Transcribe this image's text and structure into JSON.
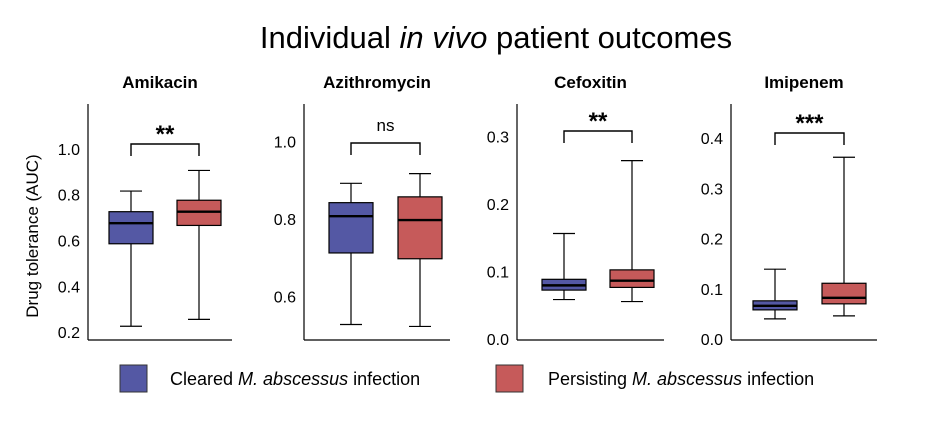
{
  "title": {
    "pre": "Individual ",
    "italic": "in vivo",
    "post": " patient outcomes"
  },
  "chart_data": {
    "type": "boxplot",
    "ylabel": "Drug tolerance (AUC)",
    "colors": {
      "cleared": "#5458a4",
      "persisting": "#c65a5a"
    },
    "legend": [
      {
        "key": "cleared",
        "pre": "Cleared ",
        "italic": "M. abscessus",
        "post": " infection"
      },
      {
        "key": "persisting",
        "pre": "Persisting ",
        "italic": "M. abscessus",
        "post": " infection"
      }
    ],
    "panels": [
      {
        "title": "Amikacin",
        "ylim": [
          0.17,
          1.2
        ],
        "ticks": [
          0.2,
          0.4,
          0.6,
          0.8,
          1.0
        ],
        "tick_labels": [
          "0.2",
          "0.4",
          "0.6",
          "0.8",
          "1.0"
        ],
        "significance": "**",
        "boxes": [
          {
            "group": "cleared",
            "min": 0.23,
            "q1": 0.59,
            "median": 0.68,
            "q3": 0.73,
            "max": 0.82
          },
          {
            "group": "persisting",
            "min": 0.26,
            "q1": 0.67,
            "median": 0.73,
            "q3": 0.78,
            "max": 0.91
          }
        ]
      },
      {
        "title": "Azithromycin",
        "ylim": [
          0.49,
          1.1
        ],
        "ticks": [
          0.6,
          0.8,
          1.0
        ],
        "tick_labels": [
          "0.6",
          "0.8",
          "1.0"
        ],
        "significance": "ns",
        "boxes": [
          {
            "group": "cleared",
            "min": 0.53,
            "q1": 0.715,
            "median": 0.81,
            "q3": 0.845,
            "max": 0.895
          },
          {
            "group": "persisting",
            "min": 0.525,
            "q1": 0.7,
            "median": 0.8,
            "q3": 0.86,
            "max": 0.92
          }
        ]
      },
      {
        "title": "Cefoxitin",
        "ylim": [
          0.0,
          0.35
        ],
        "ticks": [
          0.0,
          0.1,
          0.2,
          0.3
        ],
        "tick_labels": [
          "0.0",
          "0.1",
          "0.2",
          "0.3"
        ],
        "significance": "**",
        "boxes": [
          {
            "group": "cleared",
            "min": 0.06,
            "q1": 0.074,
            "median": 0.081,
            "q3": 0.09,
            "max": 0.158
          },
          {
            "group": "persisting",
            "min": 0.057,
            "q1": 0.078,
            "median": 0.088,
            "q3": 0.104,
            "max": 0.266
          }
        ]
      },
      {
        "title": "Imipenem",
        "ylim": [
          0.0,
          0.47
        ],
        "ticks": [
          0.0,
          0.1,
          0.2,
          0.3,
          0.4
        ],
        "tick_labels": [
          "0.0",
          "0.1",
          "0.2",
          "0.3",
          "0.4"
        ],
        "significance": "***",
        "boxes": [
          {
            "group": "cleared",
            "min": 0.042,
            "q1": 0.06,
            "median": 0.068,
            "q3": 0.078,
            "max": 0.141
          },
          {
            "group": "persisting",
            "min": 0.048,
            "q1": 0.072,
            "median": 0.084,
            "q3": 0.113,
            "max": 0.364
          }
        ]
      }
    ]
  }
}
